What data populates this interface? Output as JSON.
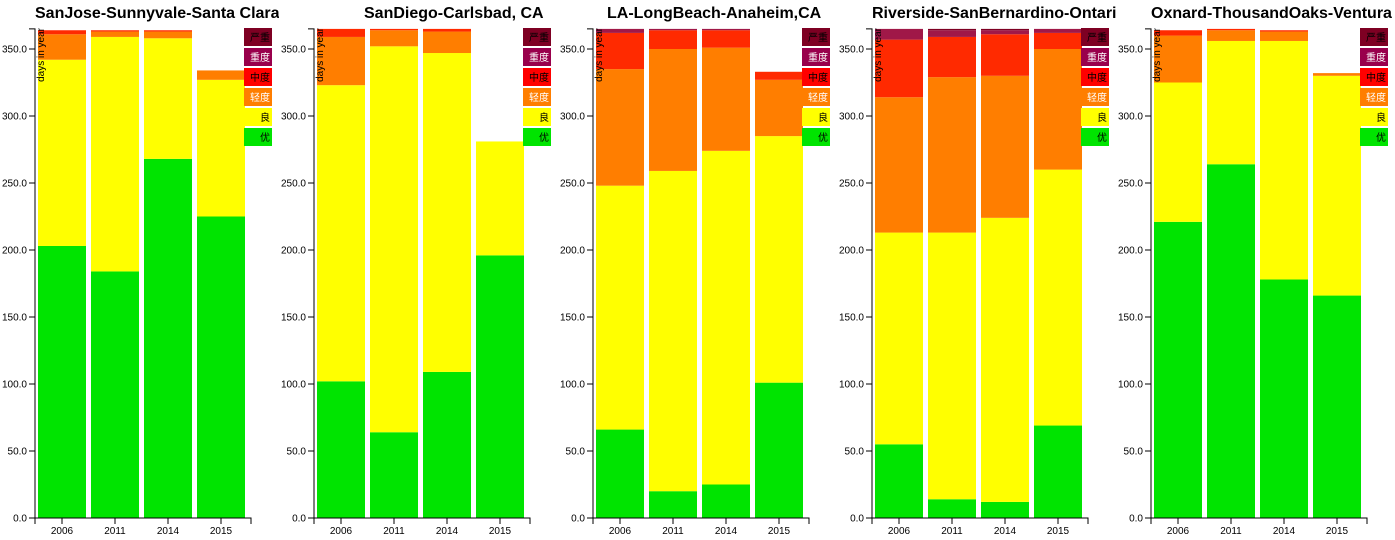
{
  "chart_data": [
    {
      "type": "bar",
      "stacked": true,
      "title": "SanJose-Sunnyvale-Santa Clara",
      "ylabel": "days in year",
      "categories": [
        "2006",
        "2011",
        "2014",
        "2015"
      ],
      "ylim": [
        0,
        365
      ],
      "yticks": [
        0,
        50,
        100,
        150,
        200,
        250,
        300,
        350
      ],
      "series": [
        {
          "name": "优",
          "values": [
            203,
            184,
            268,
            225
          ]
        },
        {
          "name": "良",
          "values": [
            139,
            175,
            90,
            102
          ]
        },
        {
          "name": "轻度",
          "values": [
            19,
            4,
            5,
            7
          ]
        },
        {
          "name": "中度",
          "values": [
            3,
            1,
            1,
            0
          ]
        },
        {
          "name": "重度",
          "values": [
            0,
            0,
            0,
            0
          ]
        },
        {
          "name": "严重",
          "values": [
            0,
            0,
            0,
            0
          ]
        }
      ]
    },
    {
      "type": "bar",
      "stacked": true,
      "title": "SanDiego-Carlsbad, CA",
      "ylabel": "days in year",
      "categories": [
        "2006",
        "2011",
        "2014",
        "2015"
      ],
      "ylim": [
        0,
        365
      ],
      "yticks": [
        0,
        50,
        100,
        150,
        200,
        250,
        300,
        350
      ],
      "series": [
        {
          "name": "优",
          "values": [
            102,
            64,
            109,
            196
          ]
        },
        {
          "name": "良",
          "values": [
            221,
            288,
            238,
            85
          ]
        },
        {
          "name": "轻度",
          "values": [
            36,
            12,
            16,
            0
          ]
        },
        {
          "name": "中度",
          "values": [
            6,
            1,
            2,
            0
          ]
        },
        {
          "name": "重度",
          "values": [
            0,
            0,
            0,
            0
          ]
        },
        {
          "name": "严重",
          "values": [
            0,
            0,
            0,
            0
          ]
        }
      ]
    },
    {
      "type": "bar",
      "stacked": true,
      "title": "LA-LongBeach-Anaheim,CA",
      "ylabel": "days in year",
      "categories": [
        "2006",
        "2011",
        "2014",
        "2015"
      ],
      "ylim": [
        0,
        365
      ],
      "yticks": [
        0,
        50,
        100,
        150,
        200,
        250,
        300,
        350
      ],
      "series": [
        {
          "name": "优",
          "values": [
            66,
            20,
            25,
            101
          ]
        },
        {
          "name": "良",
          "values": [
            182,
            239,
            249,
            184
          ]
        },
        {
          "name": "轻度",
          "values": [
            87,
            91,
            77,
            42
          ]
        },
        {
          "name": "中度",
          "values": [
            27,
            14,
            13,
            6
          ]
        },
        {
          "name": "重度",
          "values": [
            3,
            1,
            1,
            0
          ]
        },
        {
          "name": "严重",
          "values": [
            0,
            0,
            0,
            0
          ]
        }
      ]
    },
    {
      "type": "bar",
      "stacked": true,
      "title": "Riverside-SanBernardino-Ontario",
      "ylabel": "days in year",
      "categories": [
        "2006",
        "2011",
        "2014",
        "2015"
      ],
      "ylim": [
        0,
        365
      ],
      "yticks": [
        0,
        50,
        100,
        150,
        200,
        250,
        300,
        350
      ],
      "series": [
        {
          "name": "优",
          "values": [
            55,
            14,
            12,
            69
          ]
        },
        {
          "name": "良",
          "values": [
            158,
            199,
            212,
            191
          ]
        },
        {
          "name": "轻度",
          "values": [
            101,
            116,
            106,
            90
          ]
        },
        {
          "name": "中度",
          "values": [
            43,
            30,
            31,
            12
          ]
        },
        {
          "name": "重度",
          "values": [
            8,
            5,
            3,
            3
          ]
        },
        {
          "name": "严重",
          "values": [
            0,
            1,
            1,
            0
          ]
        }
      ]
    },
    {
      "type": "bar",
      "stacked": true,
      "title": "Oxnard-ThousandOaks-Ventura",
      "ylabel": "days in year",
      "categories": [
        "2006",
        "2011",
        "2014",
        "2015"
      ],
      "ylim": [
        0,
        365
      ],
      "yticks": [
        0,
        50,
        100,
        150,
        200,
        250,
        300,
        350
      ],
      "series": [
        {
          "name": "优",
          "values": [
            221,
            264,
            178,
            166
          ]
        },
        {
          "name": "良",
          "values": [
            104,
            92,
            178,
            164
          ]
        },
        {
          "name": "轻度",
          "values": [
            35,
            8,
            7,
            2
          ]
        },
        {
          "name": "中度",
          "values": [
            4,
            1,
            1,
            0
          ]
        },
        {
          "name": "重度",
          "values": [
            0,
            0,
            0,
            0
          ]
        },
        {
          "name": "严重",
          "values": [
            0,
            0,
            0,
            0
          ]
        }
      ]
    }
  ],
  "legend": {
    "placement": "top-right",
    "items": [
      {
        "label": "严重",
        "color": "#7e0023",
        "text_color": "#000000"
      },
      {
        "label": "重度",
        "color": "#99004c",
        "text_color": "#ffffff"
      },
      {
        "label": "中度",
        "color": "#ff0000",
        "text_color": "#000000"
      },
      {
        "label": "轻度",
        "color": "#ff7e00",
        "text_color": "#ffffff"
      },
      {
        "label": "良",
        "color": "#ffff00",
        "text_color": "#000000"
      },
      {
        "label": "优",
        "color": "#00e400",
        "text_color": "#000000"
      }
    ]
  },
  "series_colors": {
    "优": "#00e400",
    "良": "#ffff00",
    "轻度": "#ff7e00",
    "中度": "#ff2a00",
    "重度": "#a01848",
    "严重": "#7e0023"
  }
}
